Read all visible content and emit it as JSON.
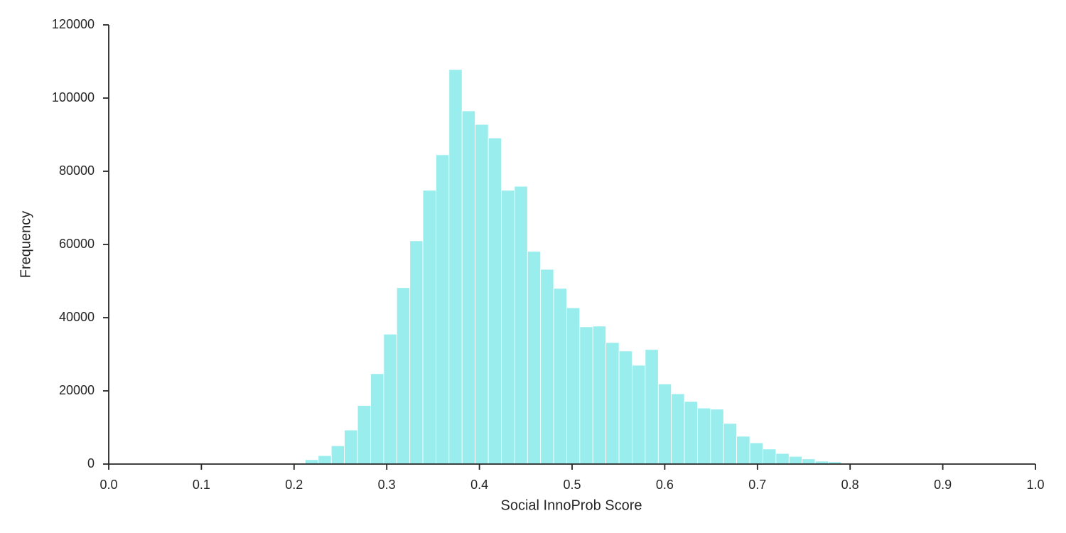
{
  "chart_data": {
    "type": "histogram",
    "xlabel": "Social InnoProb Score",
    "ylabel": "Frequency",
    "color": "#9aeded",
    "bins": [
      0.1979,
      0.212,
      0.2261,
      0.2402,
      0.2543,
      0.2685,
      0.2826,
      0.2967,
      0.3108,
      0.3249,
      0.339,
      0.3531,
      0.3672,
      0.3813,
      0.3954,
      0.4096,
      0.4237,
      0.4378,
      0.4519,
      0.466,
      0.4801,
      0.4942,
      0.5083,
      0.5224,
      0.5365,
      0.5507,
      0.5648,
      0.5789,
      0.593,
      0.6071,
      0.6212,
      0.6353,
      0.6494,
      0.6635,
      0.6776,
      0.6918,
      0.7059,
      0.72,
      0.7341,
      0.7482,
      0.7623,
      0.7764,
      0.7905
    ],
    "values": [
      200,
      1200,
      2300,
      5000,
      9300,
      16000,
      24700,
      35500,
      48200,
      61000,
      74800,
      84500,
      107800,
      96500,
      92800,
      89100,
      74800,
      75900,
      58100,
      53200,
      48000,
      42700,
      37500,
      37700,
      33200,
      30900,
      27000,
      31300,
      21900,
      19200,
      17100,
      15300,
      15000,
      11100,
      7600,
      5800,
      4100,
      2900,
      2100,
      1400,
      800,
      600
    ],
    "xlim": [
      0,
      1
    ],
    "xticks": [
      {
        "value": 0,
        "label": "0.0"
      },
      0.1,
      0.2,
      0.3,
      0.4,
      0.5,
      0.6,
      0.7,
      0.8,
      0.9,
      {
        "value": 1,
        "label": "1.0"
      }
    ],
    "ylim": [
      0,
      120000
    ],
    "yticks": [
      0,
      20000,
      40000,
      60000,
      80000,
      100000,
      120000
    ],
    "grid": false
  }
}
